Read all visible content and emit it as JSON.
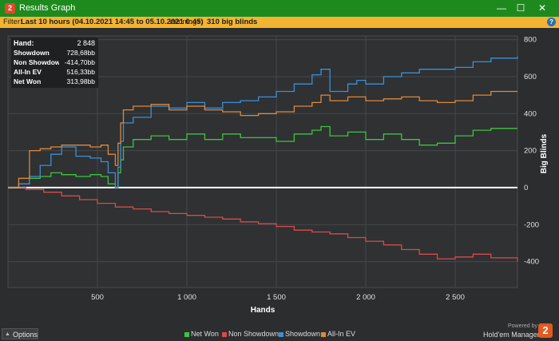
{
  "window": {
    "title": "Results Graph",
    "app_icon_text": "2",
    "minimize_glyph": "—",
    "maximize_glyph": "☐",
    "close_glyph": "✕"
  },
  "filter": {
    "label": "Filter:",
    "value": "Last 10 hours (04.10.2021 14:45 to 05.10.2021 0:45)",
    "winnings_label": "Winnings:",
    "winnings_value": "310 big blinds",
    "help_icon_text": "?"
  },
  "stats": [
    {
      "label": "Hand:",
      "value": "2 848"
    },
    {
      "label": "Showdown",
      "value": "728,68bb"
    },
    {
      "label": "Non Showdown",
      "value": "-414,70bb"
    },
    {
      "label": "All-In EV",
      "value": "516,33bb"
    },
    {
      "label": "Net Won",
      "value": "313,98bb"
    }
  ],
  "options": {
    "label": "Options",
    "caret": "▲"
  },
  "branding": {
    "powered": "Powered by",
    "name": "Hold'em Manager",
    "logo_text": "2"
  },
  "colors": {
    "net_won": "#3ec43e",
    "non_showdown": "#d84b4b",
    "showdown": "#3d8fd6",
    "all_in_ev": "#e0883a",
    "titlebar": "#1e8a1e",
    "filterbar": "#f3b431",
    "background": "#2b2d2f"
  },
  "chart_data": {
    "type": "line",
    "xlabel": "Hands",
    "ylabel": "Big Blinds",
    "xlim": [
      0,
      2848
    ],
    "ylim": [
      -540,
      820
    ],
    "x_ticks": [
      500,
      1000,
      1500,
      2000,
      2500
    ],
    "x_tick_labels": [
      "500",
      "1 000",
      "1 500",
      "2 000",
      "2 500"
    ],
    "y_ticks": [
      800,
      600,
      400,
      200,
      0,
      -200,
      -400
    ],
    "y_tick_labels": [
      "800",
      "600",
      "400",
      "200",
      "0",
      "-200",
      "-400"
    ],
    "grid": true,
    "legend_position": "bottom",
    "series": [
      {
        "name": "Net Won",
        "color": "#3ec43e",
        "x": [
          0,
          60,
          120,
          180,
          240,
          300,
          380,
          460,
          520,
          560,
          600,
          615,
          630,
          645,
          700,
          800,
          900,
          1000,
          1100,
          1200,
          1300,
          1400,
          1500,
          1600,
          1700,
          1750,
          1800,
          1900,
          2000,
          2100,
          2200,
          2300,
          2400,
          2500,
          2600,
          2700,
          2848
        ],
        "y": [
          0,
          20,
          50,
          60,
          80,
          70,
          60,
          70,
          60,
          20,
          0,
          80,
          150,
          220,
          260,
          280,
          260,
          290,
          260,
          290,
          270,
          270,
          250,
          290,
          310,
          330,
          280,
          300,
          260,
          290,
          260,
          230,
          240,
          280,
          310,
          320,
          320
        ]
      },
      {
        "name": "Non Showdown",
        "color": "#d84b4b",
        "x": [
          0,
          100,
          200,
          300,
          400,
          500,
          600,
          700,
          800,
          900,
          1000,
          1100,
          1200,
          1300,
          1400,
          1500,
          1600,
          1700,
          1800,
          1900,
          2000,
          2100,
          2200,
          2300,
          2400,
          2500,
          2600,
          2700,
          2848
        ],
        "y": [
          0,
          -10,
          -25,
          -45,
          -65,
          -85,
          -105,
          -115,
          -130,
          -140,
          -150,
          -160,
          -170,
          -185,
          -195,
          -210,
          -230,
          -240,
          -250,
          -270,
          -290,
          -310,
          -335,
          -360,
          -385,
          -375,
          -360,
          -380,
          -400
        ]
      },
      {
        "name": "Showdown",
        "color": "#3d8fd6",
        "x": [
          0,
          60,
          120,
          180,
          240,
          300,
          380,
          460,
          520,
          560,
          600,
          615,
          630,
          645,
          700,
          800,
          900,
          1000,
          1100,
          1200,
          1300,
          1400,
          1500,
          1600,
          1700,
          1750,
          1800,
          1900,
          1950,
          2000,
          2100,
          2200,
          2300,
          2400,
          2500,
          2600,
          2700,
          2848
        ],
        "y": [
          0,
          20,
          60,
          120,
          180,
          220,
          170,
          160,
          140,
          80,
          0,
          110,
          250,
          350,
          380,
          440,
          430,
          460,
          430,
          460,
          470,
          490,
          520,
          560,
          610,
          640,
          520,
          560,
          580,
          560,
          600,
          620,
          640,
          640,
          650,
          680,
          700,
          710
        ]
      },
      {
        "name": "All-In EV",
        "color": "#e0883a",
        "x": [
          0,
          60,
          120,
          180,
          240,
          300,
          380,
          460,
          520,
          560,
          600,
          615,
          630,
          645,
          700,
          800,
          900,
          1000,
          1100,
          1200,
          1300,
          1400,
          1500,
          1600,
          1700,
          1750,
          1800,
          1900,
          2000,
          2100,
          2200,
          2300,
          2400,
          2500,
          2600,
          2700,
          2848
        ],
        "y": [
          0,
          50,
          200,
          210,
          220,
          230,
          230,
          220,
          230,
          180,
          120,
          240,
          350,
          420,
          440,
          450,
          420,
          440,
          420,
          410,
          390,
          400,
          410,
          440,
          460,
          500,
          470,
          490,
          470,
          480,
          490,
          470,
          460,
          470,
          500,
          520,
          520
        ]
      }
    ]
  }
}
